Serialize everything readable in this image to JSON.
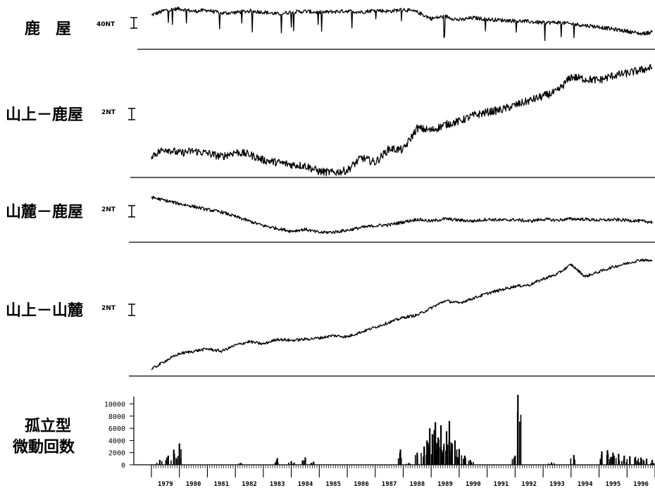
{
  "chart_data": [
    {
      "type": "line",
      "title": "鹿　屋",
      "scale_label": "40NT",
      "x_range": [
        1979,
        1997
      ],
      "series": [
        {
          "x": [
            1979.0,
            1979.5,
            1980.0,
            1980.5,
            1981.0,
            1981.5,
            1982.0,
            1982.5,
            1983.0,
            1983.5,
            1984.0,
            1984.5,
            1985.0,
            1985.5,
            1986.0,
            1986.5,
            1987.0,
            1987.5,
            1988.0,
            1988.5,
            1989.0,
            1989.5,
            1990.0,
            1990.5,
            1991.0,
            1991.5,
            1992.0,
            1992.5,
            1993.0,
            1993.5,
            1994.0,
            1994.5,
            1995.0,
            1995.5,
            1996.0,
            1996.5,
            1996.9
          ],
          "y": [
            0.75,
            0.88,
            0.92,
            0.85,
            0.88,
            0.8,
            0.82,
            0.86,
            0.83,
            0.78,
            0.83,
            0.85,
            0.82,
            0.84,
            0.86,
            0.83,
            0.88,
            0.85,
            0.9,
            0.83,
            0.66,
            0.72,
            0.62,
            0.68,
            0.64,
            0.62,
            0.6,
            0.58,
            0.55,
            0.56,
            0.52,
            0.48,
            0.44,
            0.38,
            0.33,
            0.26,
            0.3
          ]
        }
      ]
    },
    {
      "type": "line",
      "title": "山上－鹿屋",
      "scale_label": "2NT",
      "x_range": [
        1979,
        1997
      ],
      "series": [
        {
          "x": [
            1979.0,
            1979.5,
            1980.0,
            1980.5,
            1981.0,
            1981.5,
            1982.0,
            1982.5,
            1983.0,
            1983.5,
            1984.0,
            1984.5,
            1985.0,
            1985.5,
            1986.0,
            1986.5,
            1987.0,
            1987.5,
            1988.0,
            1988.5,
            1989.0,
            1989.5,
            1990.0,
            1990.5,
            1991.0,
            1991.5,
            1992.0,
            1992.5,
            1993.0,
            1993.5,
            1994.0,
            1994.5,
            1995.0,
            1995.5,
            1996.0,
            1996.5,
            1996.9
          ],
          "y": [
            0.18,
            0.24,
            0.2,
            0.22,
            0.2,
            0.17,
            0.21,
            0.19,
            0.14,
            0.12,
            0.1,
            0.09,
            0.04,
            0.03,
            0.05,
            0.16,
            0.12,
            0.24,
            0.23,
            0.42,
            0.4,
            0.45,
            0.48,
            0.53,
            0.56,
            0.58,
            0.62,
            0.66,
            0.7,
            0.74,
            0.87,
            0.85,
            0.84,
            0.88,
            0.9,
            0.93,
            0.95
          ]
        }
      ]
    },
    {
      "type": "line",
      "title": "山麓－鹿屋",
      "scale_label": "2NT",
      "x_range": [
        1979,
        1997
      ],
      "series": [
        {
          "x": [
            1979.0,
            1979.5,
            1980.0,
            1980.5,
            1981.0,
            1981.5,
            1982.0,
            1982.5,
            1983.0,
            1983.5,
            1984.0,
            1984.5,
            1985.0,
            1985.5,
            1986.0,
            1986.5,
            1987.0,
            1987.5,
            1988.0,
            1988.5,
            1989.0,
            1989.5,
            1990.0,
            1990.5,
            1991.0,
            1991.5,
            1992.0,
            1992.5,
            1993.0,
            1993.5,
            1994.0,
            1994.5,
            1995.0,
            1995.5,
            1996.0,
            1996.5,
            1996.9
          ],
          "y": [
            0.92,
            0.85,
            0.78,
            0.72,
            0.65,
            0.6,
            0.5,
            0.4,
            0.3,
            0.24,
            0.18,
            0.22,
            0.15,
            0.16,
            0.2,
            0.26,
            0.3,
            0.32,
            0.38,
            0.44,
            0.4,
            0.45,
            0.42,
            0.4,
            0.44,
            0.42,
            0.43,
            0.4,
            0.44,
            0.42,
            0.45,
            0.44,
            0.42,
            0.43,
            0.42,
            0.4,
            0.38
          ]
        }
      ]
    },
    {
      "type": "line",
      "title": "山上－山麓",
      "scale_label": "2NT",
      "x_range": [
        1979,
        1997
      ],
      "series": [
        {
          "x": [
            1979.0,
            1979.5,
            1980.0,
            1980.5,
            1981.0,
            1981.5,
            1982.0,
            1982.5,
            1983.0,
            1983.5,
            1984.0,
            1984.5,
            1985.0,
            1985.5,
            1986.0,
            1986.5,
            1987.0,
            1987.5,
            1988.0,
            1988.5,
            1989.0,
            1989.5,
            1990.0,
            1990.5,
            1991.0,
            1991.5,
            1992.0,
            1992.5,
            1993.0,
            1993.5,
            1994.0,
            1994.5,
            1995.0,
            1995.5,
            1996.0,
            1996.5,
            1996.9
          ],
          "y": [
            0.05,
            0.12,
            0.18,
            0.2,
            0.22,
            0.2,
            0.25,
            0.28,
            0.26,
            0.3,
            0.29,
            0.3,
            0.31,
            0.33,
            0.32,
            0.36,
            0.4,
            0.44,
            0.48,
            0.5,
            0.56,
            0.62,
            0.6,
            0.64,
            0.68,
            0.71,
            0.74,
            0.75,
            0.8,
            0.84,
            0.92,
            0.82,
            0.86,
            0.9,
            0.93,
            0.96,
            0.95
          ]
        }
      ]
    },
    {
      "type": "bar",
      "title": "孤立型 微動回数",
      "yticks": [
        0,
        2000,
        4000,
        6000,
        8000,
        10000
      ],
      "ylim": [
        0,
        11000
      ],
      "x_tick_labels": [
        "1979",
        "1980",
        "1981",
        "1982",
        "1983",
        "1984",
        "1985",
        "1986",
        "1987",
        "1988",
        "1989",
        "1990",
        "1991",
        "1992",
        "1993",
        "1994",
        "1995",
        "1996"
      ],
      "x": [
        1979.3,
        1979.6,
        1979.8,
        1980.0,
        1982.2,
        1983.5,
        1984.0,
        1984.5,
        1984.8,
        1987.9,
        1988.2,
        1988.5,
        1988.75,
        1988.85,
        1988.95,
        1989.05,
        1989.15,
        1989.25,
        1989.35,
        1989.45,
        1989.55,
        1989.65,
        1989.75,
        1989.85,
        1990.0,
        1990.2,
        1990.4,
        1992.0,
        1992.1,
        1993.3,
        1994.1,
        1995.1,
        1995.3,
        1995.5,
        1995.7,
        1995.9,
        1996.1,
        1996.3,
        1996.5,
        1996.7,
        1996.9
      ],
      "values": [
        800,
        1500,
        2500,
        3500,
        300,
        1100,
        600,
        1200,
        500,
        2500,
        300,
        2000,
        3000,
        4000,
        6000,
        5000,
        7000,
        4500,
        6500,
        3000,
        5500,
        7200,
        3500,
        4000,
        2600,
        1500,
        800,
        1500,
        11500,
        400,
        1600,
        2200,
        2400,
        2000,
        1800,
        1500,
        1400,
        1300,
        1200,
        1000,
        800
      ]
    }
  ]
}
